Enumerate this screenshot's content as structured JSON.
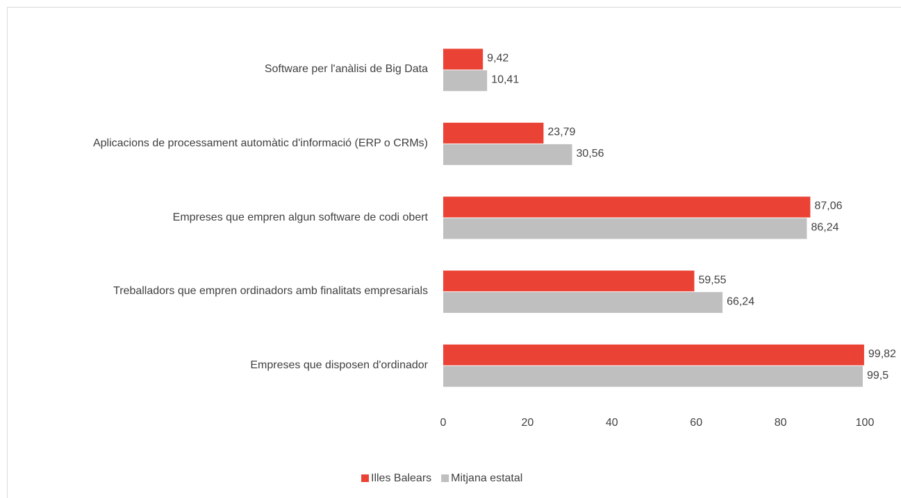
{
  "chart_data": {
    "type": "bar",
    "orientation": "horizontal",
    "categories": [
      "Software per l'anàlisi de Big Data",
      "Aplicacions de processament automàtic d'informació (ERP o CRMs)",
      "Empreses que empren algun software de codi obert",
      "Treballadors que empren ordinadors amb finalitats empresarials",
      "Empreses que disposen d'ordinador"
    ],
    "series": [
      {
        "name": "Illes Balears",
        "color": "#ea4335",
        "values": [
          9.42,
          23.79,
          87.06,
          59.55,
          99.82
        ],
        "value_labels": [
          "9,42",
          "23,79",
          "87,06",
          "59,55",
          "99,82"
        ]
      },
      {
        "name": "Mitjana estatal",
        "color": "#bfbfbf",
        "values": [
          10.41,
          30.56,
          86.24,
          66.24,
          99.5
        ],
        "value_labels": [
          "10,41",
          "30,56",
          "86,24",
          "66,24",
          "99,5"
        ]
      }
    ],
    "xlim": [
      0,
      100
    ],
    "xticks": [
      0,
      20,
      40,
      60,
      80,
      100
    ],
    "legend": "bottom"
  }
}
